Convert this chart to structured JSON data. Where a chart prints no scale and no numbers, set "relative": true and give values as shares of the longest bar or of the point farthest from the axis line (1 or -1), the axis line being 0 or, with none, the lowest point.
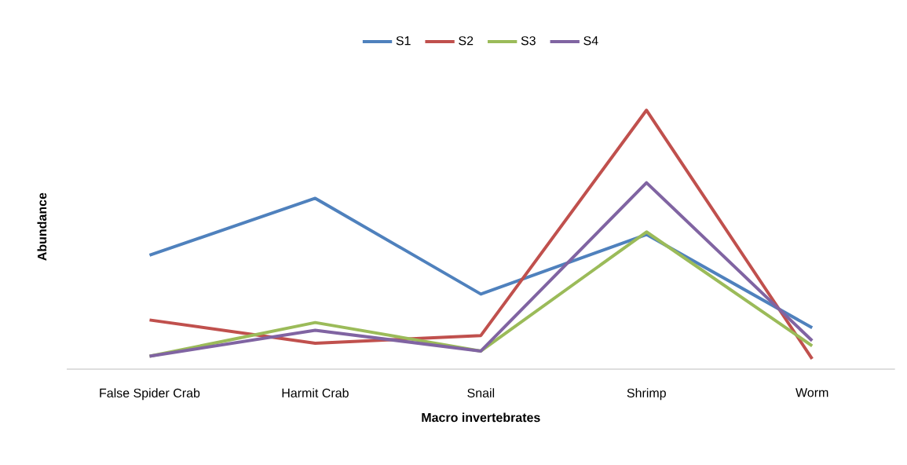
{
  "chart_data": {
    "type": "line",
    "relative": true,
    "xlabel": "Macro invertebrates",
    "ylabel": "Abundance",
    "categories": [
      "False Spider Crab",
      "Harmit Crab",
      "Snail",
      "Shrimp",
      "Worm"
    ],
    "series": [
      {
        "name": "S1",
        "color": "#4f81bd",
        "values": [
          0.44,
          0.66,
          0.29,
          0.52,
          0.16
        ]
      },
      {
        "name": "S2",
        "color": "#c0504d",
        "values": [
          0.19,
          0.1,
          0.13,
          1.0,
          0.04
        ]
      },
      {
        "name": "S3",
        "color": "#9bbb59",
        "values": [
          0.05,
          0.18,
          0.07,
          0.53,
          0.09
        ]
      },
      {
        "name": "S4",
        "color": "#8064a2",
        "values": [
          0.05,
          0.15,
          0.07,
          0.72,
          0.11
        ]
      }
    ],
    "legend": "top",
    "marker": "none",
    "line_style": "solid"
  }
}
